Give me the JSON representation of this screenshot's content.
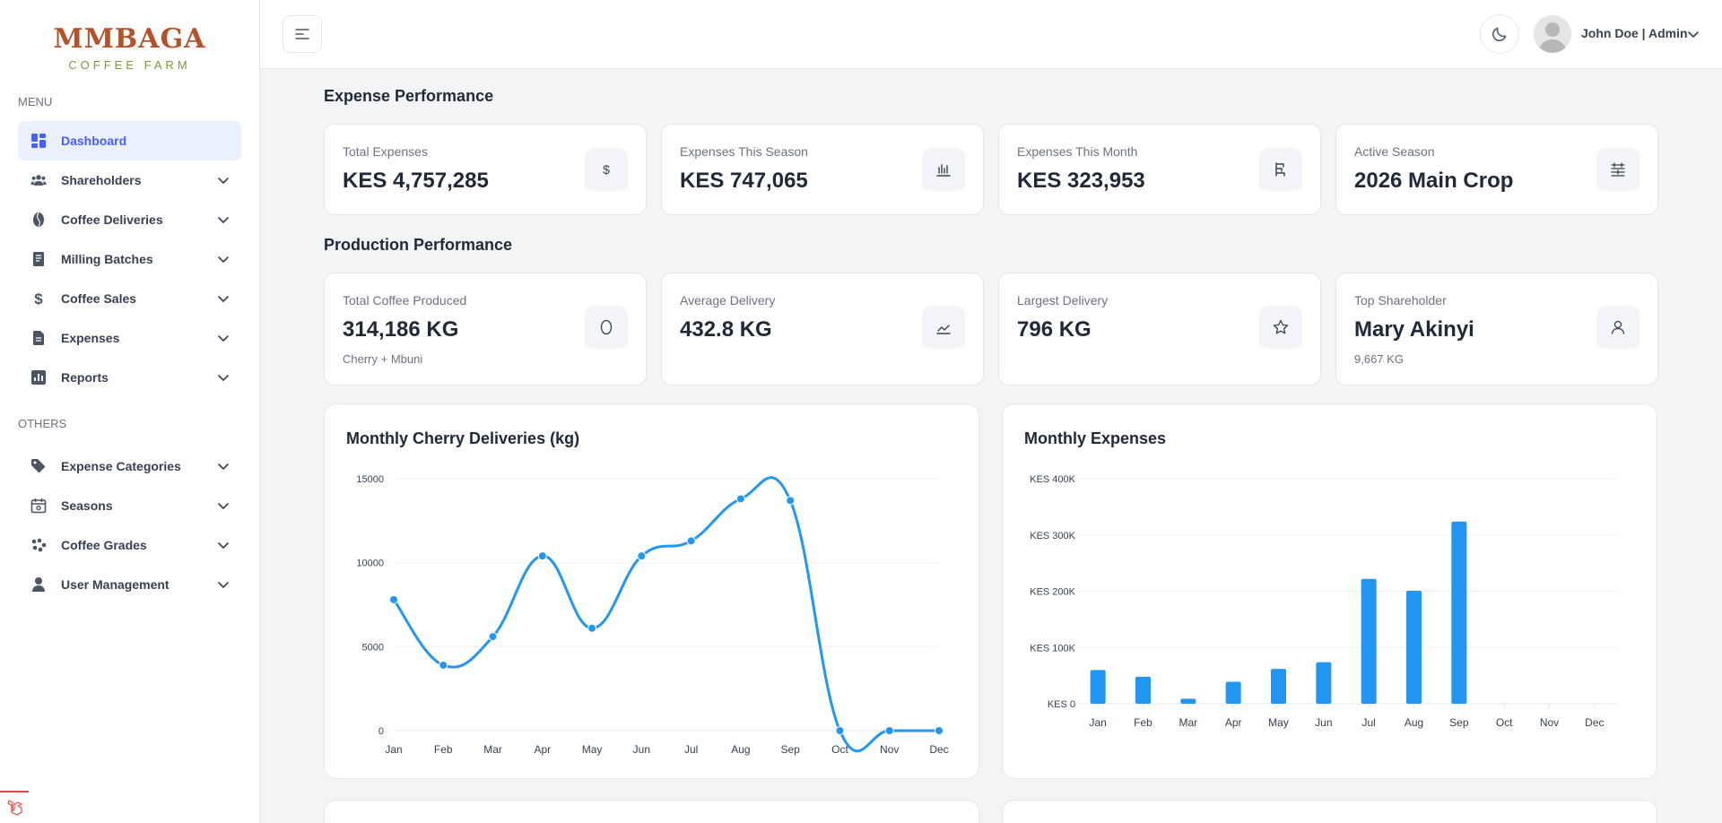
{
  "brand": {
    "name": "MMBAGA",
    "tagline": "COFFEE FARM"
  },
  "sidebar": {
    "menu_heading": "MENU",
    "others_heading": "OTHERS",
    "items": [
      {
        "label": "Dashboard",
        "icon": "grid-icon",
        "active": true,
        "has_submenu": false
      },
      {
        "label": "Shareholders",
        "icon": "users-icon",
        "has_submenu": true
      },
      {
        "label": "Coffee Deliveries",
        "icon": "coffee-bean-icon",
        "has_submenu": true
      },
      {
        "label": "Milling Batches",
        "icon": "document-icon",
        "has_submenu": true
      },
      {
        "label": "Coffee Sales",
        "icon": "dollar-icon",
        "has_submenu": true
      },
      {
        "label": "Expenses",
        "icon": "file-icon",
        "has_submenu": true
      },
      {
        "label": "Reports",
        "icon": "bar-chart-icon",
        "has_submenu": true
      }
    ],
    "others": [
      {
        "label": "Expense Categories",
        "icon": "tag-icon",
        "has_submenu": true
      },
      {
        "label": "Seasons",
        "icon": "calendar-icon",
        "has_submenu": true
      },
      {
        "label": "Coffee Grades",
        "icon": "dots-icon",
        "has_submenu": true
      },
      {
        "label": "User Management",
        "icon": "user-icon",
        "has_submenu": true
      }
    ]
  },
  "header": {
    "user_label": "John Doe | Admin"
  },
  "expense_section": {
    "title": "Expense Performance",
    "cards": [
      {
        "label": "Total Expenses",
        "value": "KES 4,757,285",
        "icon": "dollar-icon"
      },
      {
        "label": "Expenses This Season",
        "value": "KES 747,065",
        "icon": "bar-chart-icon"
      },
      {
        "label": "Expenses This Month",
        "value": "KES 323,953",
        "icon": "gantt-icon"
      },
      {
        "label": "Active Season",
        "value": "2026 Main Crop",
        "icon": "calendar-icon"
      }
    ]
  },
  "production_section": {
    "title": "Production Performance",
    "cards": [
      {
        "label": "Total Coffee Produced",
        "value": "314,186 KG",
        "sub": "Cherry + Mbuni",
        "icon": "bean-outline-icon"
      },
      {
        "label": "Average Delivery",
        "value": "432.8 KG",
        "sub": "",
        "icon": "trend-icon"
      },
      {
        "label": "Largest Delivery",
        "value": "796 KG",
        "sub": "",
        "icon": "star-icon"
      },
      {
        "label": "Top Shareholder",
        "value": "Mary Akinyi",
        "sub": "9,667 KG",
        "icon": "user-icon"
      }
    ]
  },
  "colors": {
    "accent": "#465fff",
    "series": "#2196f3",
    "brand": "#b4532a",
    "brand_sub": "#7a9a3a"
  },
  "chart_data": [
    {
      "type": "line",
      "title": "Monthly Cherry Deliveries (kg)",
      "categories": [
        "Jan",
        "Feb",
        "Mar",
        "Apr",
        "May",
        "Jun",
        "Jul",
        "Aug",
        "Sep",
        "Oct",
        "Nov",
        "Dec"
      ],
      "values": [
        7800,
        3900,
        5600,
        10400,
        6100,
        10400,
        11300,
        13800,
        13700,
        0,
        0,
        0
      ],
      "yticks": [
        "0",
        "5000",
        "10000",
        "15000"
      ],
      "ylim": [
        0,
        15000
      ],
      "xlabel": "",
      "ylabel": "",
      "grid": true
    },
    {
      "type": "bar",
      "title": "Monthly Expenses",
      "categories": [
        "Jan",
        "Feb",
        "Mar",
        "Apr",
        "May",
        "Jun",
        "Jul",
        "Aug",
        "Sep",
        "Oct",
        "Nov",
        "Dec"
      ],
      "values": [
        60000,
        48000,
        9000,
        39000,
        62000,
        74000,
        222000,
        201000,
        324000,
        0,
        0,
        0
      ],
      "yticks": [
        "KES 0",
        "KES 100K",
        "KES 200K",
        "KES 300K",
        "KES 400K"
      ],
      "ylim": [
        0,
        400000
      ],
      "xlabel": "",
      "ylabel": "",
      "grid": true
    }
  ]
}
